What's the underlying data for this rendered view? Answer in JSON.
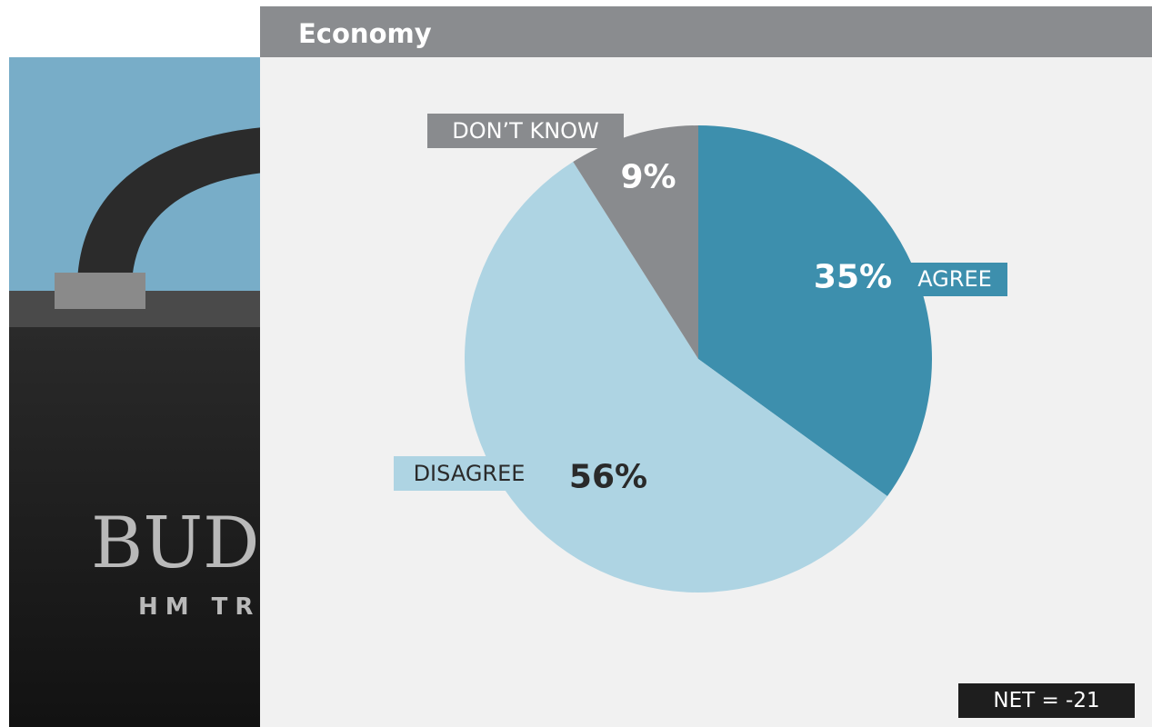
{
  "chart_data": {
    "type": "pie",
    "title": "Economy",
    "categories": [
      "AGREE",
      "DISAGREE",
      "DON’T KNOW"
    ],
    "values": [
      35,
      56,
      9
    ],
    "value_labels": [
      "35%",
      "56%",
      "9%"
    ],
    "colors": [
      "#3d8fad",
      "#aed4e3",
      "#898b8e"
    ],
    "annotation": "NET = -21"
  },
  "background_image": {
    "texts": [
      "BUD",
      "HM TR"
    ]
  }
}
